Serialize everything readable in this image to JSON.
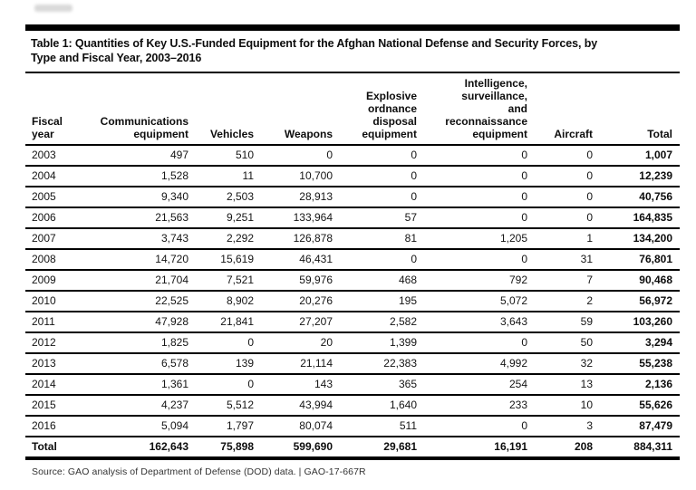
{
  "page": {
    "title": "Table 1: Quantities of Key U.S.-Funded Equipment for the Afghan National Defense and Security Forces, by\nType and Fiscal Year, 2003–2016",
    "source_line": "Source: GAO analysis of Department of Defense (DOD) data.  |  GAO-17-667R"
  },
  "table": {
    "columns": [
      {
        "label": "Fiscal\nyear"
      },
      {
        "label": "Communications\nequipment"
      },
      {
        "label": "Vehicles"
      },
      {
        "label": "Weapons"
      },
      {
        "label": "Explosive\nordnance\ndisposal\nequipment"
      },
      {
        "label": "Intelligence,\nsurveillance,\nand\nreconnaissance\nequipment"
      },
      {
        "label": "Aircraft"
      },
      {
        "label": "Total"
      }
    ],
    "rows": [
      [
        "2003",
        "497",
        "510",
        "0",
        "0",
        "0",
        "0",
        "1,007"
      ],
      [
        "2004",
        "1,528",
        "11",
        "10,700",
        "0",
        "0",
        "0",
        "12,239"
      ],
      [
        "2005",
        "9,340",
        "2,503",
        "28,913",
        "0",
        "0",
        "0",
        "40,756"
      ],
      [
        "2006",
        "21,563",
        "9,251",
        "133,964",
        "57",
        "0",
        "0",
        "164,835"
      ],
      [
        "2007",
        "3,743",
        "2,292",
        "126,878",
        "81",
        "1,205",
        "1",
        "134,200"
      ],
      [
        "2008",
        "14,720",
        "15,619",
        "46,431",
        "0",
        "0",
        "31",
        "76,801"
      ],
      [
        "2009",
        "21,704",
        "7,521",
        "59,976",
        "468",
        "792",
        "7",
        "90,468"
      ],
      [
        "2010",
        "22,525",
        "8,902",
        "20,276",
        "195",
        "5,072",
        "2",
        "56,972"
      ],
      [
        "2011",
        "47,928",
        "21,841",
        "27,207",
        "2,582",
        "3,643",
        "59",
        "103,260"
      ],
      [
        "2012",
        "1,825",
        "0",
        "20",
        "1,399",
        "0",
        "50",
        "3,294"
      ],
      [
        "2013",
        "6,578",
        "139",
        "21,114",
        "22,383",
        "4,992",
        "32",
        "55,238"
      ],
      [
        "2014",
        "1,361",
        "0",
        "143",
        "365",
        "254",
        "13",
        "2,136"
      ],
      [
        "2015",
        "4,237",
        "5,512",
        "43,994",
        "1,640",
        "233",
        "10",
        "55,626"
      ],
      [
        "2016",
        "5,094",
        "1,797",
        "80,074",
        "511",
        "0",
        "3",
        "87,479"
      ]
    ],
    "total_row": [
      "Total",
      "162,643",
      "75,898",
      "599,690",
      "29,681",
      "16,191",
      "208",
      "884,311"
    ]
  }
}
